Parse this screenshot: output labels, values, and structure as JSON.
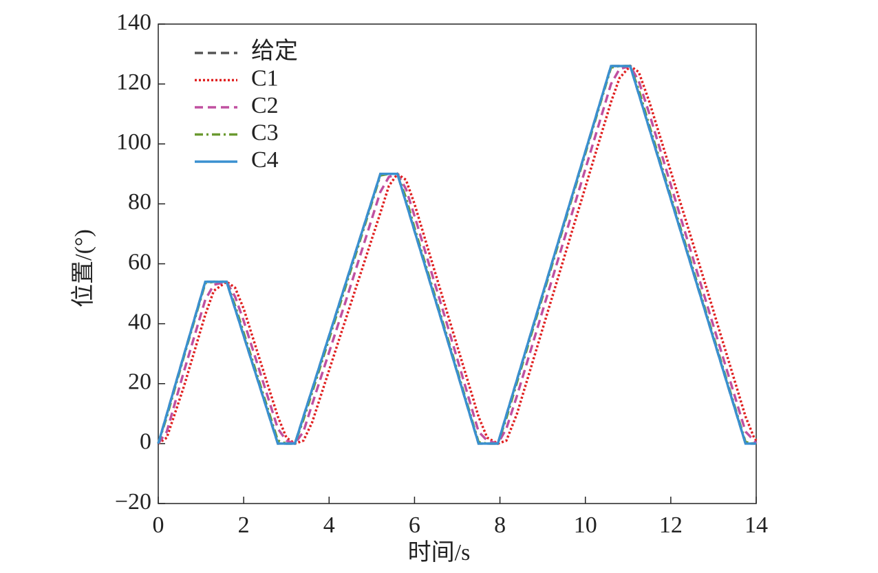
{
  "chart_data": {
    "type": "line",
    "xlabel": "时间/s",
    "ylabel": "位置/(°)",
    "x": [
      0,
      0.2,
      0.6,
      1.1,
      1.3,
      1.6,
      1.8,
      2.0,
      2.4,
      2.8,
      3.0,
      3.2,
      3.4,
      3.6,
      4.4,
      5.2,
      5.4,
      5.6,
      5.8,
      6.0,
      6.8,
      7.5,
      7.7,
      7.95,
      8.15,
      8.4,
      9.5,
      10.6,
      10.8,
      11.05,
      11.25,
      11.5,
      12.6,
      13.75,
      13.95,
      14
    ],
    "series": [
      {
        "name": "给定",
        "color": "#555555",
        "dash": "dashed",
        "values": [
          0,
          9.8,
          29.5,
          54,
          54,
          54,
          45,
          36,
          18,
          0,
          0,
          0,
          9,
          18,
          54,
          90,
          90,
          90,
          80.5,
          71,
          33.2,
          0,
          0,
          0,
          9.5,
          21.4,
          73.7,
          126,
          126,
          126,
          116.7,
          105,
          53.7,
          0,
          0,
          0
        ]
      },
      {
        "name": "C1",
        "color": "#e02020",
        "dash": "dotted",
        "values": [
          0,
          2,
          19,
          43,
          51,
          54,
          52,
          45,
          27,
          9,
          2,
          0,
          1,
          7,
          42,
          77,
          86,
          90,
          88,
          80,
          42,
          9,
          2,
          0,
          1,
          10,
          62,
          114,
          122,
          126,
          124,
          114,
          63,
          9,
          2,
          1
        ]
      },
      {
        "name": "C2",
        "color": "#c050a0",
        "dash": "dashed",
        "values": [
          0,
          4,
          24,
          48,
          53,
          54,
          49,
          41,
          23,
          5,
          1,
          0,
          4,
          13,
          48,
          84,
          89,
          90,
          85,
          76,
          38,
          4,
          1,
          0,
          5,
          16,
          68,
          120,
          125,
          126,
          121,
          110,
          58,
          4,
          1,
          0
        ]
      },
      {
        "name": "C3",
        "color": "#6a9a30",
        "dash": "dashdot",
        "values": [
          0,
          9,
          29,
          53.5,
          54,
          54,
          46,
          37,
          19,
          1,
          0,
          0,
          8,
          17,
          53,
          89.5,
          90,
          90,
          82,
          72,
          34,
          0.5,
          0,
          0,
          8.5,
          20.5,
          73,
          125.5,
          126,
          126,
          118,
          106,
          54.5,
          0.5,
          0,
          0
        ]
      },
      {
        "name": "C4",
        "color": "#3a90d0",
        "dash": "solid",
        "values": [
          0,
          9.8,
          29.5,
          54,
          54,
          54,
          45,
          36,
          18,
          0,
          0,
          0,
          9,
          18,
          54,
          90,
          90,
          90,
          80.5,
          71,
          33.2,
          0,
          0,
          0,
          9.5,
          21.4,
          73.7,
          126,
          126,
          126,
          116.7,
          105,
          53.7,
          0,
          0,
          0
        ]
      }
    ],
    "xlim": [
      0,
      14
    ],
    "xticks": [
      0,
      2,
      4,
      6,
      8,
      10,
      12,
      14
    ],
    "ylim": [
      -20,
      140
    ],
    "yticks": [
      {
        "value": -20,
        "label": "−20"
      },
      0,
      20,
      40,
      60,
      80,
      100,
      120,
      140
    ],
    "grid": false,
    "legend": "upper-left"
  }
}
